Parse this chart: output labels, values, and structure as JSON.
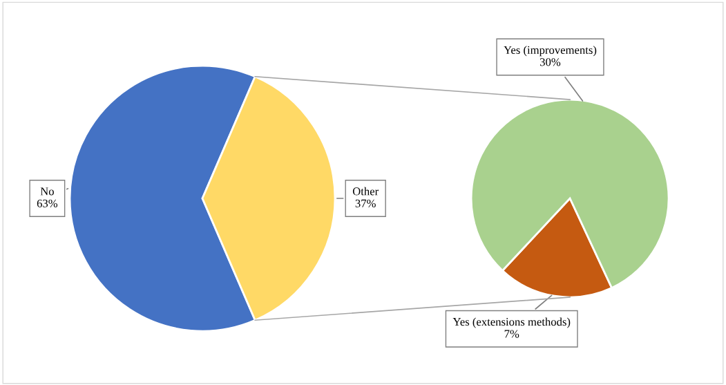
{
  "chart_data": [
    {
      "type": "pie",
      "categories": [
        "No",
        "Other"
      ],
      "values": [
        63,
        37
      ],
      "colors": [
        "#4472c4",
        "#ffd966"
      ],
      "value_labels": [
        "63%",
        "37%"
      ]
    },
    {
      "type": "pie",
      "categories": [
        "Yes (extensions methods)",
        "Yes (improvements)"
      ],
      "values": [
        7,
        30
      ],
      "colors": [
        "#c55a11",
        "#a9d18e"
      ],
      "value_labels": [
        "7%",
        "30%"
      ]
    }
  ]
}
